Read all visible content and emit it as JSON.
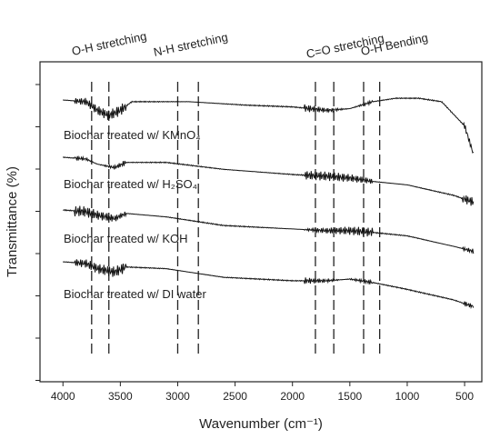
{
  "chart_data": {
    "type": "line",
    "xlabel": "Wavenumber (cm⁻¹)",
    "ylabel": "Transmittance (%)",
    "xlim": [
      4200,
      350
    ],
    "x_reversed": true,
    "x_ticks": [
      4000,
      3500,
      3000,
      2500,
      2000,
      1500,
      1000,
      500
    ],
    "x_tick_labels": [
      "4000",
      "3500",
      "3000",
      "2500",
      "2000",
      "1500",
      "1000",
      "500"
    ],
    "y_tick_labels_shown": false,
    "grid": false,
    "legend": "none",
    "bands": [
      {
        "label": "O-H stretching",
        "x_lines": [
          3750,
          3600
        ]
      },
      {
        "label": "N-H stretching",
        "x_lines": [
          3000,
          2820
        ]
      },
      {
        "label": "C=O stretching",
        "x_lines": [
          1800,
          1640
        ]
      },
      {
        "label": "O-H Bending",
        "x_lines": [
          1380,
          1240
        ]
      }
    ],
    "series": [
      {
        "name": "Biochar treated w/ KMnO₄",
        "points": [
          [
            4000,
            0.0
          ],
          [
            3800,
            0.05
          ],
          [
            3700,
            0.3
          ],
          [
            3600,
            0.45
          ],
          [
            3500,
            0.3
          ],
          [
            3400,
            0.05
          ],
          [
            3100,
            0.05
          ],
          [
            2900,
            0.05
          ],
          [
            2400,
            0.15
          ],
          [
            2000,
            0.2
          ],
          [
            1700,
            0.3
          ],
          [
            1500,
            0.25
          ],
          [
            1300,
            0.05
          ],
          [
            1100,
            -0.05
          ],
          [
            900,
            -0.05
          ],
          [
            700,
            0.05
          ],
          [
            500,
            0.75
          ],
          [
            420,
            1.6
          ]
        ]
      },
      {
        "name": "Biochar treated w/ H₂SO₄",
        "points": [
          [
            4000,
            0.0
          ],
          [
            3800,
            0.05
          ],
          [
            3700,
            0.2
          ],
          [
            3550,
            0.3
          ],
          [
            3450,
            0.15
          ],
          [
            3100,
            0.15
          ],
          [
            2600,
            0.35
          ],
          [
            2000,
            0.5
          ],
          [
            1700,
            0.55
          ],
          [
            1500,
            0.6
          ],
          [
            1300,
            0.7
          ],
          [
            1000,
            0.8
          ],
          [
            800,
            0.95
          ],
          [
            600,
            1.1
          ],
          [
            420,
            1.3
          ]
        ]
      },
      {
        "name": "Biochar treated w/ KOH",
        "points": [
          [
            4000,
            0.0
          ],
          [
            3800,
            0.05
          ],
          [
            3700,
            0.15
          ],
          [
            3550,
            0.25
          ],
          [
            3450,
            0.1
          ],
          [
            3100,
            0.2
          ],
          [
            2600,
            0.45
          ],
          [
            2000,
            0.55
          ],
          [
            1700,
            0.6
          ],
          [
            1500,
            0.6
          ],
          [
            1300,
            0.65
          ],
          [
            1000,
            0.75
          ],
          [
            800,
            0.9
          ],
          [
            600,
            1.05
          ],
          [
            420,
            1.2
          ]
        ]
      },
      {
        "name": "Biochar treated w/ DI water",
        "points": [
          [
            4000,
            0.0
          ],
          [
            3800,
            0.05
          ],
          [
            3700,
            0.2
          ],
          [
            3550,
            0.3
          ],
          [
            3450,
            0.15
          ],
          [
            3100,
            0.2
          ],
          [
            2600,
            0.45
          ],
          [
            2000,
            0.55
          ],
          [
            1700,
            0.55
          ],
          [
            1500,
            0.5
          ],
          [
            1300,
            0.6
          ],
          [
            1000,
            0.8
          ],
          [
            800,
            0.95
          ],
          [
            600,
            1.1
          ],
          [
            420,
            1.3
          ]
        ]
      }
    ]
  }
}
